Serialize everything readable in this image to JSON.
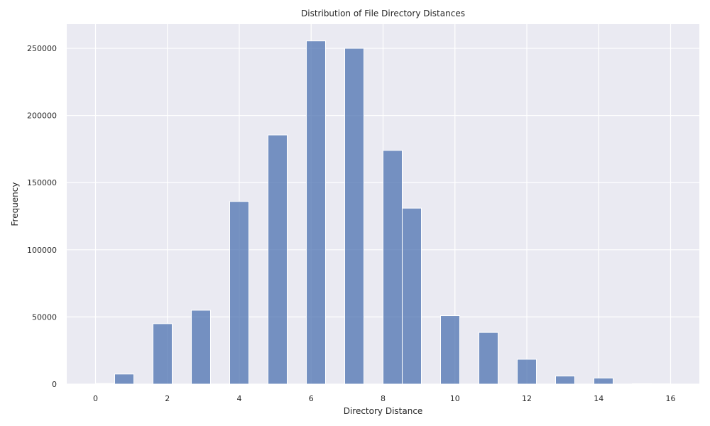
{
  "chart_data": {
    "type": "bar",
    "title": "Distribution of File Directory Distances",
    "xlabel": "Directory Distance",
    "ylabel": "Frequency",
    "xlim": [
      -0.8,
      16.8
    ],
    "ylim": [
      0,
      268000
    ],
    "x_ticks": [
      0,
      2,
      4,
      6,
      8,
      10,
      12,
      14,
      16
    ],
    "y_ticks": [
      0,
      50000,
      100000,
      150000,
      200000,
      250000
    ],
    "x_tick_labels": [
      "0",
      "2",
      "4",
      "6",
      "8",
      "10",
      "12",
      "14",
      "16"
    ],
    "y_tick_labels": [
      "0",
      "50000",
      "100000",
      "150000",
      "200000",
      "250000"
    ],
    "grid": true,
    "bar_color": "#4c72b0",
    "background_color": "#eaeaf2",
    "bins": [
      {
        "x0": 0.0,
        "x1": 0.533,
        "value": 500
      },
      {
        "x0": 0.533,
        "x1": 1.067,
        "value": 7500
      },
      {
        "x0": 1.6,
        "x1": 2.133,
        "value": 45000
      },
      {
        "x0": 2.667,
        "x1": 3.2,
        "value": 55000
      },
      {
        "x0": 3.733,
        "x1": 4.267,
        "value": 136000
      },
      {
        "x0": 4.8,
        "x1": 5.333,
        "value": 185500
      },
      {
        "x0": 5.867,
        "x1": 6.4,
        "value": 255500
      },
      {
        "x0": 6.933,
        "x1": 7.467,
        "value": 250000
      },
      {
        "x0": 8.0,
        "x1": 8.533,
        "value": 174000
      },
      {
        "x0": 8.533,
        "x1": 9.067,
        "value": 131000
      },
      {
        "x0": 9.6,
        "x1": 10.133,
        "value": 51000
      },
      {
        "x0": 10.667,
        "x1": 11.2,
        "value": 38500
      },
      {
        "x0": 11.733,
        "x1": 12.267,
        "value": 18500
      },
      {
        "x0": 12.8,
        "x1": 13.333,
        "value": 6000
      },
      {
        "x0": 13.867,
        "x1": 14.4,
        "value": 4500
      },
      {
        "x0": 14.933,
        "x1": 15.467,
        "value": 300
      },
      {
        "x0": 15.467,
        "x1": 16.0,
        "value": 150
      }
    ]
  }
}
